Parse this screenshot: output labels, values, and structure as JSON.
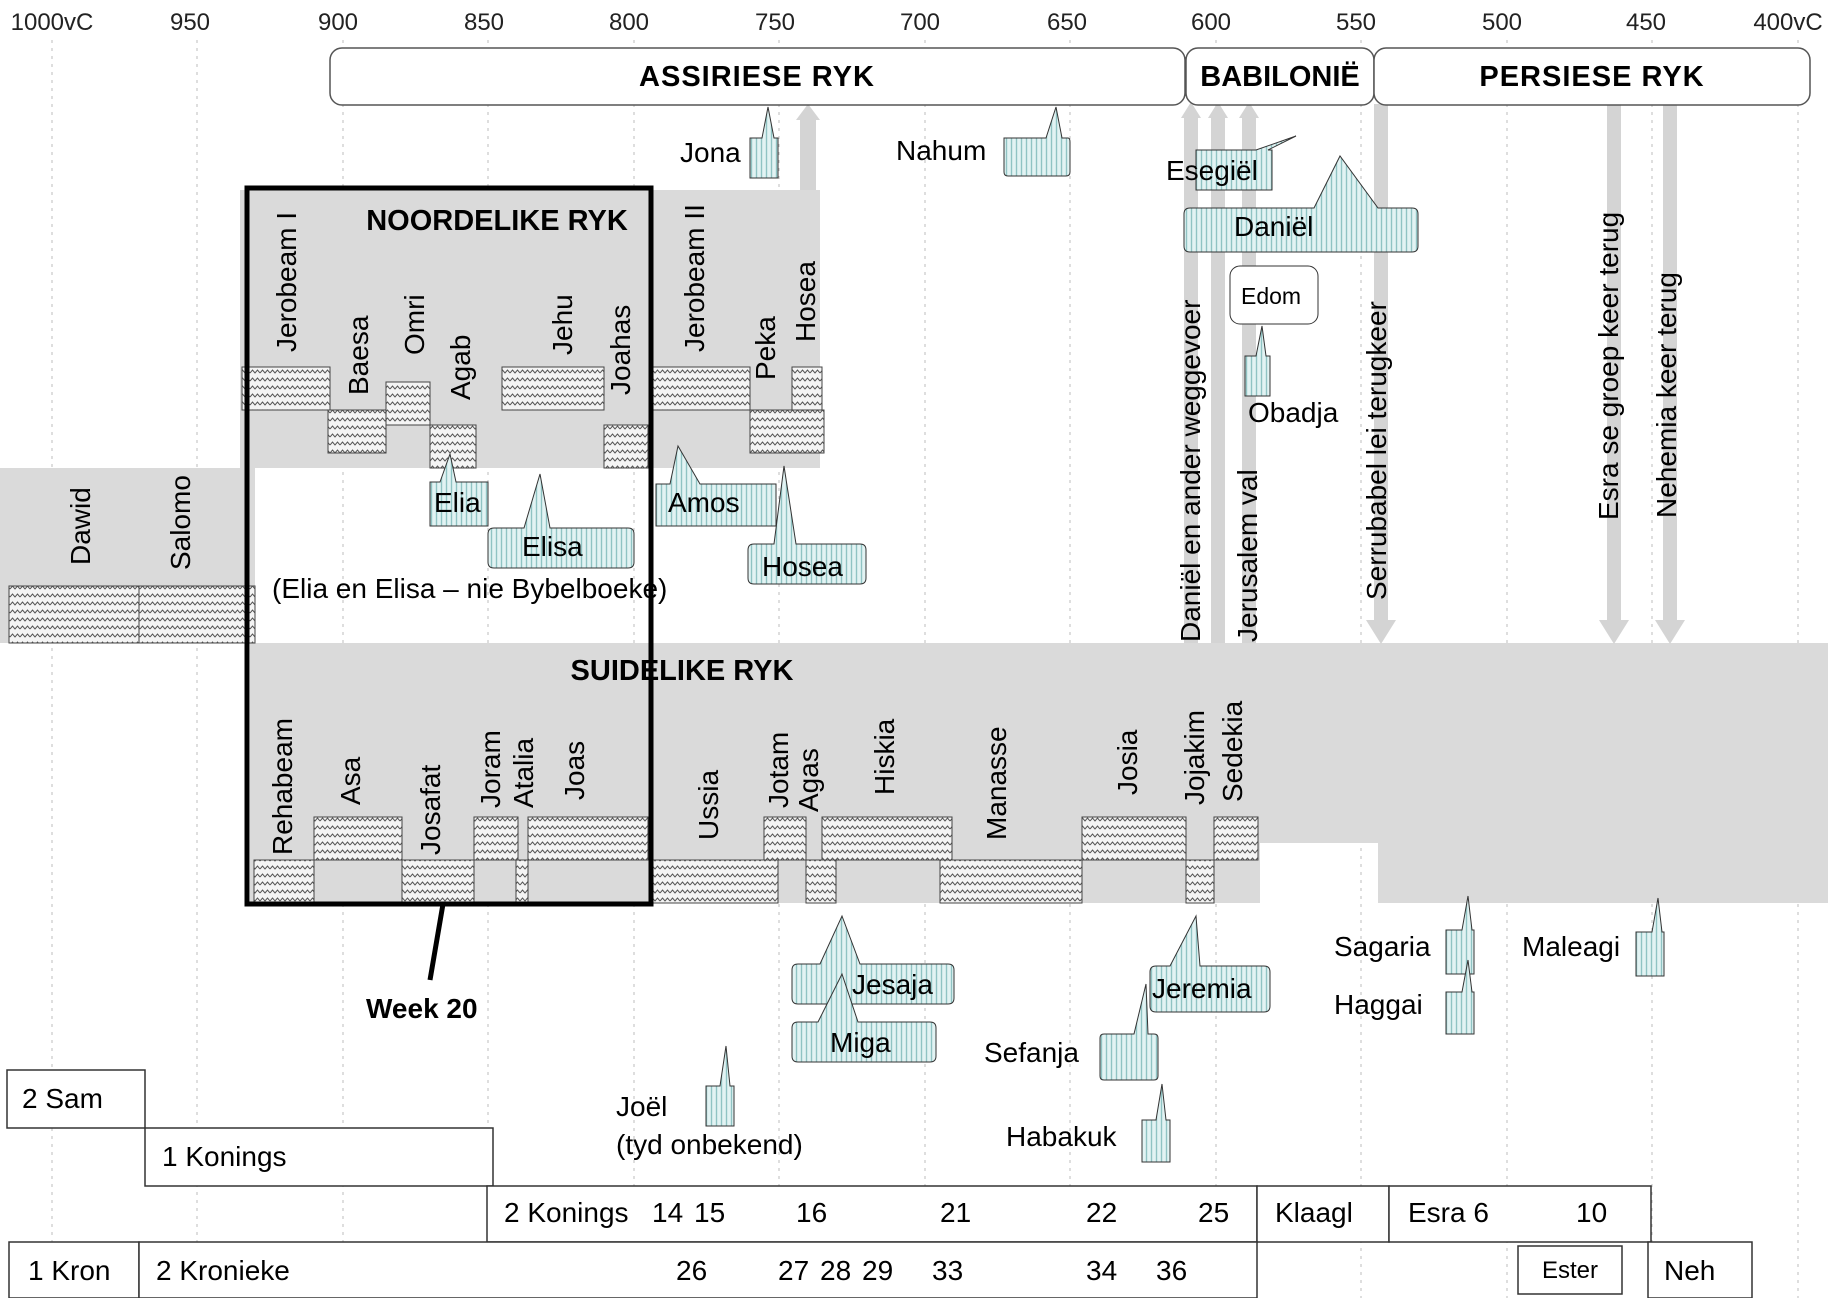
{
  "axis": {
    "ticks": [
      "1000vC",
      "950",
      "900",
      "850",
      "800",
      "750",
      "700",
      "650",
      "600",
      "550",
      "500",
      "450",
      "400vC"
    ]
  },
  "empires": {
    "assyria": "ASSIRIESE RYK",
    "babylon": "BABILONIË",
    "persia": "PERSIESE RYK"
  },
  "united": {
    "kings": [
      "Dawid",
      "Salomo"
    ]
  },
  "north": {
    "title": "NOORDELIKE RYK",
    "kings": [
      "Jerobeam I",
      "Baesa",
      "Omri",
      "Agab",
      "Jehu",
      "Joahas",
      "Jerobeam II",
      "Peka",
      "Hosea"
    ]
  },
  "south": {
    "title": "SUIDELIKE RYK",
    "kings": [
      "Rehabeam",
      "Asa",
      "Josafat",
      "Joram",
      "Atalia",
      "Joas",
      "Ussia",
      "Jotam",
      "Agas",
      "Hiskia",
      "Manasse",
      "Josia",
      "Jojakim",
      "Sedekia"
    ]
  },
  "events": [
    "Daniël en ander weggevoer",
    "Jerusalem val",
    "Serrubabel lei terugkeer",
    "Esra se groep keer terug",
    "Nehemia keer terug"
  ],
  "prophets": {
    "jona": "Jona",
    "nahum": "Nahum",
    "esegiel": "Esegiël",
    "daniel": "Daniël",
    "edom": "Edom",
    "obadja": "Obadja",
    "elia": "Elia",
    "elisa": "Elisa",
    "amos": "Amos",
    "hosea": "Hosea",
    "elia_elisa_note": "(Elia en Elisa – nie Bybelboeke)",
    "jesaja": "Jesaja",
    "miga": "Miga",
    "jeremia": "Jeremia",
    "sefanja": "Sefanja",
    "habakuk": "Habakuk",
    "joel": "Joël",
    "joel_note": "(tyd onbekend)",
    "sagaria": "Sagaria",
    "haggai": "Haggai",
    "maleagi": "Maleagi"
  },
  "week_label": "Week 20",
  "books": {
    "sam2": "2 Sam",
    "kings1": "1 Konings",
    "kings2": "2 Konings",
    "kings2_chapters": [
      "14",
      "15",
      "16",
      "21",
      "22",
      "25"
    ],
    "klaagl": "Klaagl",
    "esra": "Esra 6",
    "esra_ch": "10",
    "kron1": "1 Kron",
    "kron2": "2 Kronieke",
    "kron2_chapters": [
      "26",
      "27",
      "28",
      "29",
      "33",
      "34",
      "36"
    ],
    "ester": "Ester",
    "neh": "Neh"
  }
}
